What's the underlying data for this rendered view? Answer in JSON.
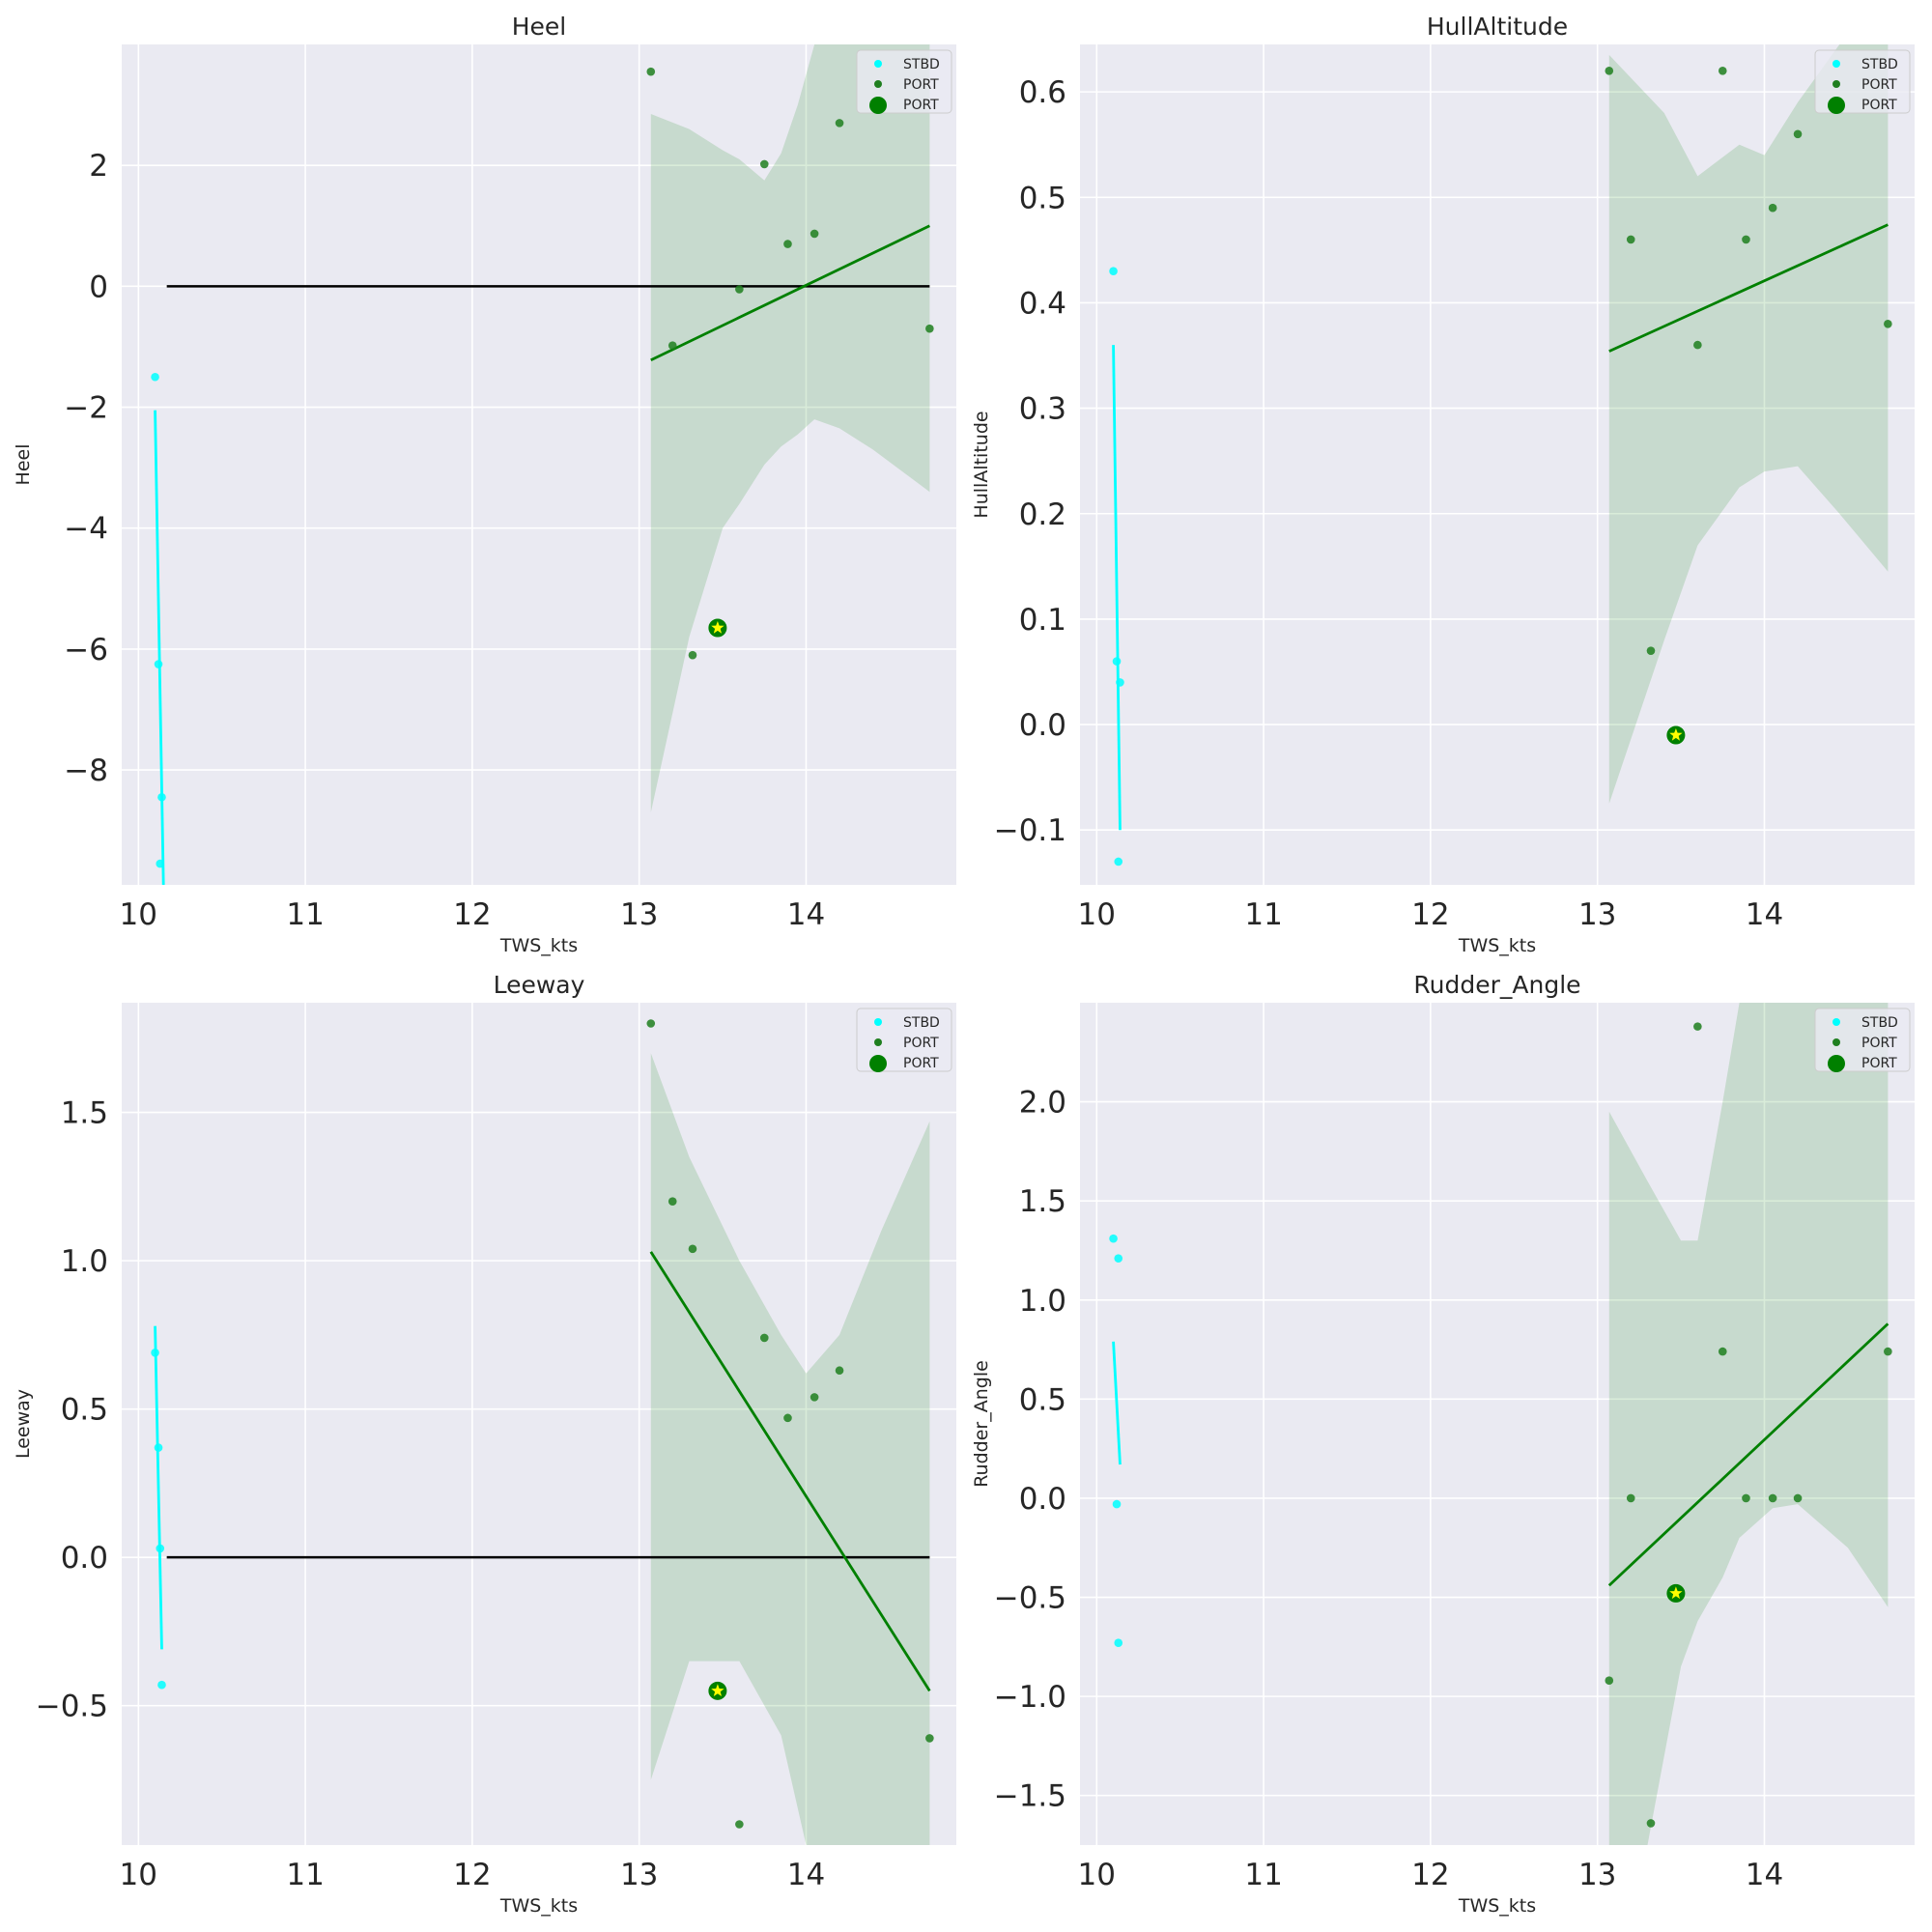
{
  "colors": {
    "stbd": "#00ffff",
    "port": "#008000",
    "port_point": "#1f7f1f",
    "ci_fill": "#008000",
    "zero_line": "#000000",
    "star": "#ffff00",
    "axes_bg": "#eaeaf2",
    "grid": "#ffffff"
  },
  "chart_data": [
    {
      "type": "scatter",
      "title": "Heel",
      "xlabel": "TWS_kts",
      "ylabel": "Heel",
      "xlim": [
        9.9,
        14.9
      ],
      "ylim": [
        -9.9,
        4.0
      ],
      "xticks": [
        10,
        11,
        12,
        13,
        14
      ],
      "xtick_labels": [
        "10",
        "11",
        "12",
        "13",
        "14"
      ],
      "yticks": [
        -8,
        -6,
        -4,
        -2,
        0,
        2
      ],
      "ytick_labels": [
        "−8",
        "−6",
        "−4",
        "−2",
        "0",
        "2"
      ],
      "grid": true,
      "zero_line": true,
      "legend": {
        "position": "top-right",
        "entries": [
          "STBD",
          "PORT",
          "PORT"
        ]
      },
      "series": [
        {
          "name": "STBD",
          "x": [
            10.1,
            10.12,
            10.14,
            10.13
          ],
          "y": [
            -1.5,
            -6.25,
            -8.45,
            -9.55
          ],
          "fit": {
            "x0": 10.1,
            "y0": -2.05,
            "x1": 10.15,
            "y1": -9.9
          }
        },
        {
          "name": "PORT",
          "x": [
            13.07,
            13.2,
            13.32,
            13.6,
            13.75,
            13.89,
            14.05,
            14.2,
            14.74
          ],
          "y": [
            3.55,
            -0.98,
            -6.1,
            -0.05,
            2.02,
            0.7,
            0.87,
            2.7,
            -0.7
          ],
          "fit": {
            "x0": 13.07,
            "y0": -1.22,
            "x1": 14.74,
            "y1": 1.0
          },
          "ci": {
            "x": [
              13.07,
              13.3,
              13.5,
              13.6,
              13.75,
              13.85,
              13.95,
              14.05,
              14.2,
              14.4,
              14.74
            ],
            "upper": [
              2.85,
              2.6,
              2.25,
              2.1,
              1.75,
              2.2,
              3.0,
              4.0,
              4.0,
              4.0,
              4.0
            ],
            "lower": [
              -8.7,
              -5.8,
              -4.0,
              -3.6,
              -2.95,
              -2.65,
              -2.45,
              -2.2,
              -2.35,
              -2.7,
              -3.4
            ]
          }
        },
        {
          "name": "PORT",
          "highlight": true,
          "x": [
            13.47
          ],
          "y": [
            -5.65
          ]
        }
      ]
    },
    {
      "type": "scatter",
      "title": "HullAltitude",
      "xlabel": "TWS_kts",
      "ylabel": "HullAltitude",
      "xlim": [
        9.9,
        14.9
      ],
      "ylim": [
        -0.152,
        0.645
      ],
      "xticks": [
        10,
        11,
        12,
        13,
        14
      ],
      "xtick_labels": [
        "10",
        "11",
        "12",
        "13",
        "14"
      ],
      "yticks": [
        -0.1,
        0.0,
        0.1,
        0.2,
        0.3,
        0.4,
        0.5,
        0.6
      ],
      "ytick_labels": [
        "−0.1",
        "0.0",
        "0.1",
        "0.2",
        "0.3",
        "0.4",
        "0.5",
        "0.6"
      ],
      "grid": true,
      "zero_line": false,
      "legend": {
        "position": "top-right",
        "entries": [
          "STBD",
          "PORT",
          "PORT"
        ]
      },
      "series": [
        {
          "name": "STBD",
          "x": [
            10.1,
            10.12,
            10.14,
            10.13
          ],
          "y": [
            0.43,
            0.06,
            0.04,
            -0.13
          ],
          "fit": {
            "x0": 10.1,
            "y0": 0.36,
            "x1": 10.14,
            "y1": -0.1
          }
        },
        {
          "name": "PORT",
          "x": [
            13.07,
            13.2,
            13.32,
            13.6,
            13.75,
            13.89,
            14.05,
            14.2,
            14.74
          ],
          "y": [
            0.62,
            0.46,
            0.07,
            0.36,
            0.62,
            0.46,
            0.49,
            0.56,
            0.38
          ],
          "fit": {
            "x0": 13.07,
            "y0": 0.354,
            "x1": 14.74,
            "y1": 0.474
          },
          "ci": {
            "x": [
              13.07,
              13.4,
              13.6,
              13.85,
              14.0,
              14.2,
              14.45,
              14.74
            ],
            "upper": [
              0.635,
              0.58,
              0.52,
              0.55,
              0.54,
              0.59,
              0.645,
              0.645
            ],
            "lower": [
              -0.075,
              0.08,
              0.17,
              0.225,
              0.24,
              0.245,
              0.2,
              0.145
            ]
          }
        },
        {
          "name": "PORT",
          "highlight": true,
          "x": [
            13.47
          ],
          "y": [
            -0.01
          ]
        }
      ]
    },
    {
      "type": "scatter",
      "title": "Leeway",
      "xlabel": "TWS_kts",
      "ylabel": "Leeway",
      "xlim": [
        9.9,
        14.9
      ],
      "ylim": [
        -0.97,
        1.87
      ],
      "xticks": [
        10,
        11,
        12,
        13,
        14
      ],
      "xtick_labels": [
        "10",
        "11",
        "12",
        "13",
        "14"
      ],
      "yticks": [
        -0.5,
        0.0,
        0.5,
        1.0,
        1.5
      ],
      "ytick_labels": [
        "−0.5",
        "0.0",
        "0.5",
        "1.0",
        "1.5"
      ],
      "grid": true,
      "zero_line": true,
      "legend": {
        "position": "top-right",
        "entries": [
          "STBD",
          "PORT",
          "PORT"
        ]
      },
      "series": [
        {
          "name": "STBD",
          "x": [
            10.1,
            10.12,
            10.13,
            10.14
          ],
          "y": [
            0.69,
            0.37,
            0.03,
            -0.43
          ],
          "fit": {
            "x0": 10.1,
            "y0": 0.78,
            "x1": 10.14,
            "y1": -0.31
          }
        },
        {
          "name": "PORT",
          "x": [
            13.07,
            13.2,
            13.32,
            13.6,
            13.75,
            13.89,
            14.05,
            14.2,
            14.74
          ],
          "y": [
            1.8,
            1.2,
            1.04,
            -0.9,
            0.74,
            0.47,
            0.54,
            0.63,
            -0.61
          ],
          "fit": {
            "x0": 13.07,
            "y0": 1.03,
            "x1": 14.74,
            "y1": -0.45
          },
          "ci": {
            "x": [
              13.07,
              13.3,
              13.6,
              13.85,
              14.0,
              14.2,
              14.45,
              14.74
            ],
            "upper": [
              1.7,
              1.35,
              1.0,
              0.75,
              0.62,
              0.75,
              1.1,
              1.47
            ],
            "lower": [
              -0.75,
              -0.35,
              -0.35,
              -0.6,
              -0.97,
              -0.97,
              -0.97,
              -0.97
            ]
          }
        },
        {
          "name": "PORT",
          "highlight": true,
          "x": [
            13.47
          ],
          "y": [
            -0.45
          ]
        }
      ]
    },
    {
      "type": "scatter",
      "title": "Rudder_Angle",
      "xlabel": "TWS_kts",
      "ylabel": "Rudder_Angle",
      "xlim": [
        9.9,
        14.9
      ],
      "ylim": [
        -1.75,
        2.5
      ],
      "xticks": [
        10,
        11,
        12,
        13,
        14
      ],
      "xtick_labels": [
        "10",
        "11",
        "12",
        "13",
        "14"
      ],
      "yticks": [
        -1.5,
        -1.0,
        -0.5,
        0.0,
        0.5,
        1.0,
        1.5,
        2.0
      ],
      "ytick_labels": [
        "−1.5",
        "−1.0",
        "−0.5",
        "0.0",
        "0.5",
        "1.0",
        "1.5",
        "2.0"
      ],
      "grid": true,
      "zero_line": false,
      "legend": {
        "position": "top-right",
        "entries": [
          "STBD",
          "PORT",
          "PORT"
        ]
      },
      "series": [
        {
          "name": "STBD",
          "x": [
            10.1,
            10.12,
            10.13,
            10.13
          ],
          "y": [
            1.31,
            -0.03,
            1.21,
            -0.73
          ],
          "fit": {
            "x0": 10.1,
            "y0": 0.79,
            "x1": 10.14,
            "y1": 0.17
          }
        },
        {
          "name": "PORT",
          "x": [
            13.07,
            13.2,
            13.32,
            13.6,
            13.75,
            13.89,
            14.05,
            14.2,
            14.74
          ],
          "y": [
            -0.92,
            0.0,
            -1.64,
            2.38,
            0.74,
            0.0,
            0.0,
            0.0,
            0.74
          ],
          "fit": {
            "x0": 13.07,
            "y0": -0.44,
            "x1": 14.74,
            "y1": 0.88
          },
          "ci": {
            "x": [
              13.07,
              13.3,
              13.5,
              13.6,
              13.75,
              13.85,
              14.05,
              14.2,
              14.5,
              14.74
            ],
            "upper": [
              1.95,
              1.6,
              1.3,
              1.3,
              2.0,
              2.5,
              2.5,
              2.5,
              2.5,
              2.5
            ],
            "lower": [
              -1.75,
              -1.75,
              -0.85,
              -0.62,
              -0.4,
              -0.2,
              -0.05,
              -0.03,
              -0.25,
              -0.55
            ]
          }
        },
        {
          "name": "PORT",
          "highlight": true,
          "x": [
            13.47
          ],
          "y": [
            -0.48
          ]
        }
      ]
    }
  ]
}
